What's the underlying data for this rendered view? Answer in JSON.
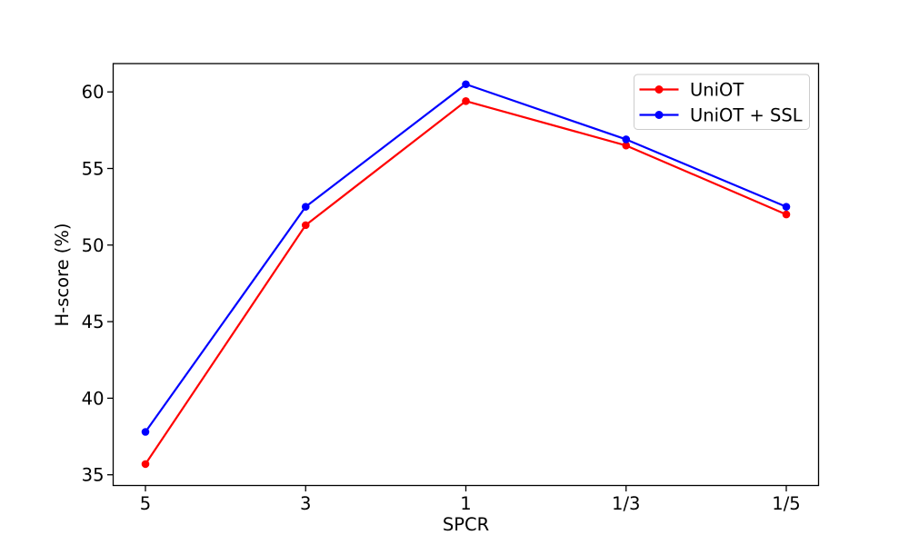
{
  "figure": {
    "background": "#ffffff",
    "frame_color": "#000000"
  },
  "chart_data": {
    "type": "line",
    "title": "",
    "xlabel": "SPCR",
    "ylabel": "H-score (%)",
    "categories": [
      "5",
      "3",
      "1",
      "1/3",
      "1/5"
    ],
    "series": [
      {
        "name": "UniOT",
        "color": "#ff0000",
        "marker": "circle",
        "values": [
          35.7,
          51.3,
          59.4,
          56.5,
          52.0
        ]
      },
      {
        "name": "UniOT + SSL",
        "color": "#0000ff",
        "marker": "circle",
        "values": [
          37.8,
          52.5,
          60.5,
          56.9,
          52.5
        ]
      }
    ],
    "yticks": [
      35,
      40,
      45,
      50,
      55,
      60
    ],
    "ylim": [
      34.3,
      61.85
    ],
    "grid": false,
    "legend_position": "upper right",
    "legend_border_color": "#cccccc"
  }
}
